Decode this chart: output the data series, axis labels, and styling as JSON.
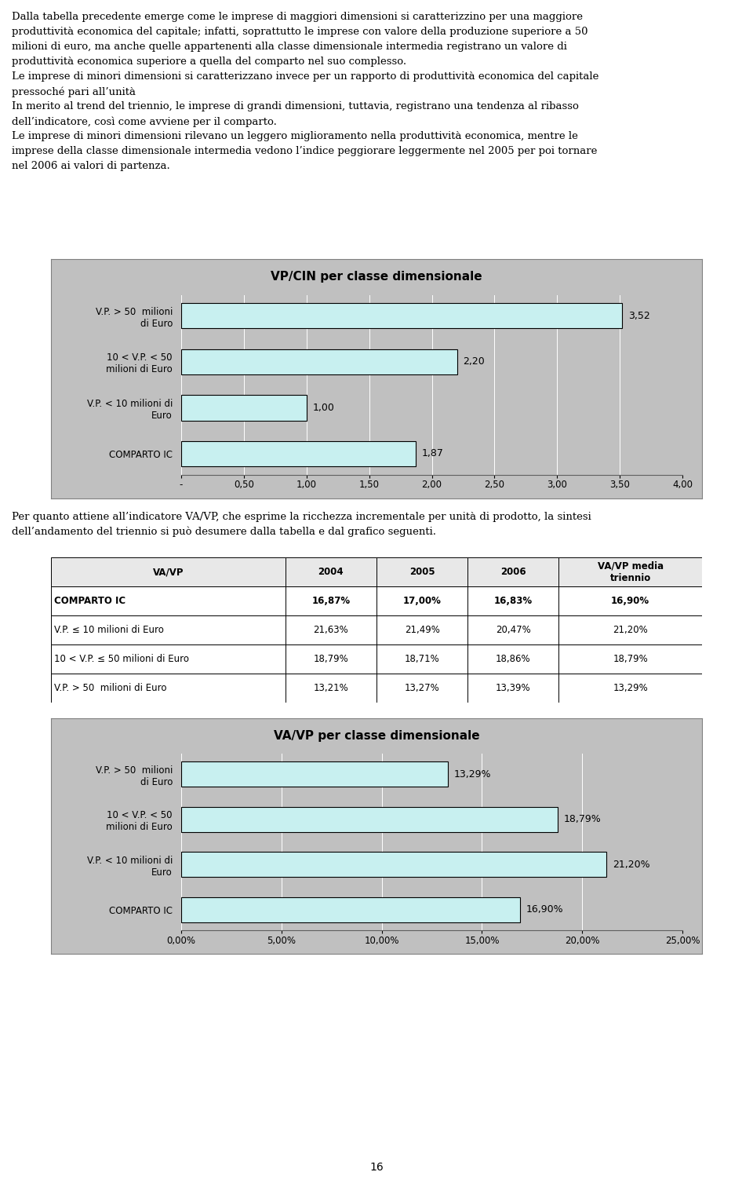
{
  "para1": "Dalla tabella precedente emerge come le imprese di maggiori dimensioni si caratterizzino per una maggiore produttività economica del capitale; infatti, soprattutto le imprese con valore della produzione superiore a 50 milioni di euro, ma anche quelle appartenenti alla classe dimensionale intermedia registrano un valore di produttività economica superiore a quella del comparto nel suo complesso.",
  "para2": "Le imprese di minori dimensioni si caratterizzano invece per un rapporto di produttività economica del capitale pressoché pari all’unità",
  "para3": "In merito al trend del triennio, le imprese di grandi dimensioni, tuttavia, registrano una tendenza al ribasso dell’indicatore, così come avviene per il comparto.",
  "para4": "Le imprese di minori dimensioni rilevano un leggero miglioramento nella produttività economica, mentre le imprese della classe dimensionale intermedia vedono l’indice peggiorare leggermente nel 2005 per poi tornare nel 2006 ai valori di partenza.",
  "text_between": "Per quanto attiene all’indicatore VA/VP, che esprime la ricchezza incrementale per unità di prodotto, la sintesi dell’andamento del triennio si può desumere dalla tabella e dal grafico seguenti.",
  "chart1_title": "VP/CIN per classe dimensionale",
  "chart1_categories": [
    "V.P. > 50  milioni\ndi Euro",
    "10 < V.P. < 50\nmilioni di Euro",
    "V.P. < 10 milioni di\nEuro",
    "COMPARTO IC"
  ],
  "chart1_values": [
    3.52,
    2.2,
    1.0,
    1.87
  ],
  "chart1_labels": [
    "3,52",
    "2,20",
    "1,00",
    "1,87"
  ],
  "chart1_xlim": [
    0,
    4.0
  ],
  "chart1_xticks": [
    0,
    0.5,
    1.0,
    1.5,
    2.0,
    2.5,
    3.0,
    3.5,
    4.0
  ],
  "chart1_xtick_labels": [
    "-",
    "0,50",
    "1,00",
    "1,50",
    "2,00",
    "2,50",
    "3,00",
    "3,50",
    "4,00"
  ],
  "table_headers": [
    "VA/VP",
    "2004",
    "2005",
    "2006",
    "VA/VP media\ntriennio"
  ],
  "table_rows": [
    [
      "COMPARTO IC",
      "16,87%",
      "17,00%",
      "16,83%",
      "16,90%"
    ],
    [
      "V.P. ≤ 10 milioni di Euro",
      "21,63%",
      "21,49%",
      "20,47%",
      "21,20%"
    ],
    [
      "10 < V.P. ≤ 50 milioni di Euro",
      "18,79%",
      "18,71%",
      "18,86%",
      "18,79%"
    ],
    [
      "V.P. > 50  milioni di Euro",
      "13,21%",
      "13,27%",
      "13,39%",
      "13,29%"
    ]
  ],
  "table_bold_row": 0,
  "chart2_title": "VA/VP per classe dimensionale",
  "chart2_categories": [
    "V.P. > 50  milioni\ndi Euro",
    "10 < V.P. < 50\nmilioni di Euro",
    "V.P. < 10 milioni di\nEuro",
    "COMPARTO IC"
  ],
  "chart2_values": [
    0.1329,
    0.1879,
    0.212,
    0.169
  ],
  "chart2_labels": [
    "13,29%",
    "18,79%",
    "21,20%",
    "16,90%"
  ],
  "chart2_xlim": [
    0,
    0.25
  ],
  "chart2_xticks": [
    0,
    0.05,
    0.1,
    0.15,
    0.2,
    0.25
  ],
  "chart2_xtick_labels": [
    "0,00%",
    "5,00%",
    "10,00%",
    "15,00%",
    "20,00%",
    "25,00%"
  ],
  "bar_color": "#c8f0f0",
  "bar_edge_color": "#000000",
  "chart_bg_color": "#c0c0c0",
  "page_number": "16",
  "font_size_body": 9.5,
  "font_size_chart_title": 11
}
